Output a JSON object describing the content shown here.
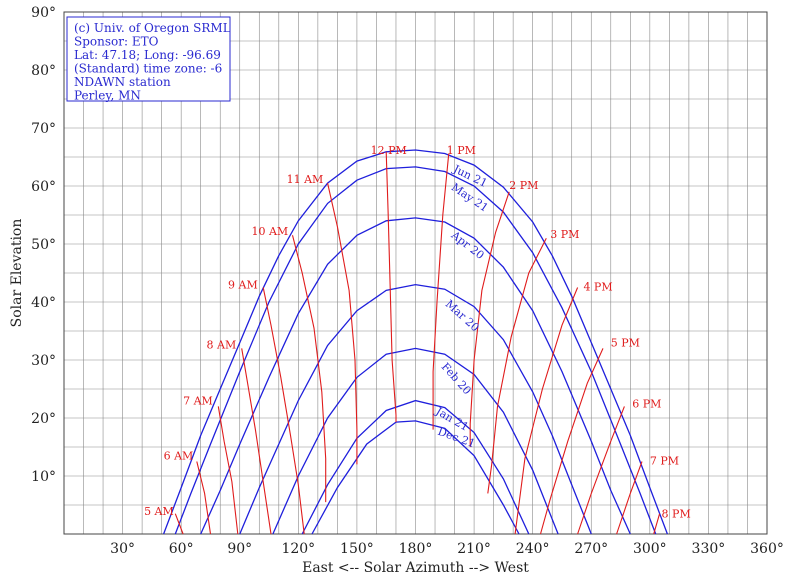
{
  "chart_data": {
    "type": "line",
    "title": "",
    "xlabel": "East <-- Solar Azimuth --> West",
    "ylabel": "Solar Elevation",
    "xlim": [
      0,
      360
    ],
    "ylim": [
      0,
      90
    ],
    "x_ticks": [
      30,
      60,
      90,
      120,
      150,
      180,
      210,
      240,
      270,
      300,
      330,
      360
    ],
    "y_ticks": [
      10,
      20,
      30,
      40,
      50,
      60,
      70,
      80,
      90
    ],
    "x_tick_labels": [
      "30°",
      "60°",
      "90°",
      "120°",
      "150°",
      "180°",
      "210°",
      "240°",
      "270°",
      "300°",
      "330°",
      "360°"
    ],
    "y_tick_labels": [
      "10°",
      "20°",
      "30°",
      "40°",
      "50°",
      "60°",
      "70°",
      "80°",
      "90°"
    ],
    "grid": true,
    "info_box": [
      "(c) Univ. of Oregon SRML",
      "Sponsor: ETO",
      "Lat: 47.18; Long: -96.69",
      "(Standard) time zone: -6",
      "NDAWN station",
      "Perley, MN"
    ],
    "colors": {
      "date_curves": "#1f1fdc",
      "hour_curves": "#e01c1c",
      "grid": "#8a8a8a",
      "info_text": "#2a2ad0"
    },
    "date_series": [
      {
        "name": "Jun 21",
        "points": [
          [
            51,
            0
          ],
          [
            60,
            8
          ],
          [
            70,
            17
          ],
          [
            80,
            25
          ],
          [
            90,
            33
          ],
          [
            100,
            41
          ],
          [
            110,
            48
          ],
          [
            120,
            54
          ],
          [
            135,
            60.5
          ],
          [
            150,
            64.3
          ],
          [
            165,
            65.9
          ],
          [
            180,
            66.2
          ],
          [
            195,
            65.6
          ],
          [
            210,
            63.6
          ],
          [
            225,
            59.8
          ],
          [
            240,
            53.8
          ],
          [
            250,
            48
          ],
          [
            260,
            41
          ],
          [
            270,
            33
          ],
          [
            280,
            25
          ],
          [
            290,
            17
          ],
          [
            300,
            8
          ],
          [
            309,
            0
          ]
        ]
      },
      {
        "name": "May 21",
        "points": [
          [
            57,
            0
          ],
          [
            65,
            7
          ],
          [
            75,
            15.5
          ],
          [
            90,
            28
          ],
          [
            105,
            40
          ],
          [
            120,
            50
          ],
          [
            135,
            57
          ],
          [
            150,
            61
          ],
          [
            165,
            63
          ],
          [
            180,
            63.3
          ],
          [
            195,
            62.5
          ],
          [
            210,
            60
          ],
          [
            225,
            55.5
          ],
          [
            240,
            48.5
          ],
          [
            255,
            39
          ],
          [
            270,
            28
          ],
          [
            285,
            15.5
          ],
          [
            295,
            7
          ],
          [
            303,
            0
          ]
        ]
      },
      {
        "name": "Apr 20",
        "points": [
          [
            70,
            0
          ],
          [
            80,
            7.5
          ],
          [
            90,
            15.5
          ],
          [
            105,
            27
          ],
          [
            120,
            38
          ],
          [
            135,
            46.5
          ],
          [
            150,
            51.5
          ],
          [
            165,
            54
          ],
          [
            180,
            54.5
          ],
          [
            195,
            53.8
          ],
          [
            210,
            51
          ],
          [
            225,
            46
          ],
          [
            240,
            38.5
          ],
          [
            255,
            28
          ],
          [
            270,
            16
          ],
          [
            280,
            7.5
          ],
          [
            290,
            0
          ]
        ]
      },
      {
        "name": "Mar 20",
        "points": [
          [
            90,
            0
          ],
          [
            100,
            8
          ],
          [
            110,
            15.5
          ],
          [
            120,
            23
          ],
          [
            135,
            32.5
          ],
          [
            150,
            38.5
          ],
          [
            165,
            42
          ],
          [
            180,
            43
          ],
          [
            195,
            42.2
          ],
          [
            210,
            39.2
          ],
          [
            225,
            33.5
          ],
          [
            240,
            24.5
          ],
          [
            250,
            17
          ],
          [
            260,
            8.5
          ],
          [
            270,
            0
          ]
        ]
      },
      {
        "name": "Feb 20",
        "points": [
          [
            107,
            0
          ],
          [
            120,
            10
          ],
          [
            135,
            20
          ],
          [
            150,
            27
          ],
          [
            165,
            31
          ],
          [
            180,
            32
          ],
          [
            195,
            31
          ],
          [
            210,
            27.5
          ],
          [
            225,
            21
          ],
          [
            240,
            11
          ],
          [
            253,
            0
          ]
        ]
      },
      {
        "name": "Jan 21",
        "points": [
          [
            122,
            0
          ],
          [
            135,
            8.5
          ],
          [
            150,
            16.5
          ],
          [
            165,
            21.3
          ],
          [
            180,
            23
          ],
          [
            195,
            21.8
          ],
          [
            210,
            17.5
          ],
          [
            225,
            9.5
          ],
          [
            238,
            0
          ]
        ]
      },
      {
        "name": "Dec 21",
        "points": [
          [
            127,
            0
          ],
          [
            140,
            8
          ],
          [
            155,
            15.5
          ],
          [
            170,
            19.3
          ],
          [
            180,
            19.5
          ],
          [
            195,
            18.2
          ],
          [
            210,
            13.5
          ],
          [
            225,
            5
          ],
          [
            233,
            0
          ]
        ]
      }
    ],
    "hour_series": [
      {
        "name": "5 AM",
        "points": [
          [
            57,
            3.5
          ],
          [
            61,
            0
          ]
        ]
      },
      {
        "name": "6 AM",
        "points": [
          [
            68,
            12.5
          ],
          [
            72,
            7
          ],
          [
            75,
            0
          ]
        ]
      },
      {
        "name": "7 AM",
        "points": [
          [
            79,
            22
          ],
          [
            82,
            16
          ],
          [
            86,
            9
          ],
          [
            89,
            0
          ]
        ]
      },
      {
        "name": "8 AM",
        "points": [
          [
            91,
            32
          ],
          [
            94,
            26
          ],
          [
            98,
            18
          ],
          [
            102,
            9
          ],
          [
            106,
            0
          ]
        ]
      },
      {
        "name": "9 AM",
        "points": [
          [
            102,
            42.5
          ],
          [
            106,
            36
          ],
          [
            111,
            27
          ],
          [
            116,
            17
          ],
          [
            120,
            8.5
          ],
          [
            123,
            0
          ]
        ]
      },
      {
        "name": "10 AM",
        "points": [
          [
            117,
            51.5
          ],
          [
            122,
            45
          ],
          [
            128,
            35.5
          ],
          [
            132,
            24.5
          ],
          [
            134,
            13
          ],
          [
            134,
            5.5
          ]
        ]
      },
      {
        "name": "11 AM",
        "points": [
          [
            135,
            60.5
          ],
          [
            140,
            53
          ],
          [
            146,
            42
          ],
          [
            149,
            30
          ],
          [
            150,
            18
          ],
          [
            150,
            12
          ]
        ]
      },
      {
        "name": "12 PM",
        "points": [
          [
            165,
            65.9
          ],
          [
            166,
            55
          ],
          [
            167,
            43
          ],
          [
            168,
            30
          ],
          [
            170,
            20.5
          ],
          [
            170,
            19.3
          ]
        ]
      },
      {
        "name": "1 PM",
        "points": [
          [
            197,
            65.5
          ],
          [
            194,
            55
          ],
          [
            191,
            40
          ],
          [
            189,
            28
          ],
          [
            189,
            18
          ]
        ]
      },
      {
        "name": "2 PM",
        "points": [
          [
            228,
            59
          ],
          [
            221,
            52
          ],
          [
            214,
            42
          ],
          [
            210,
            30
          ],
          [
            208,
            19
          ],
          [
            208,
            15
          ]
        ]
      },
      {
        "name": "3 PM",
        "points": [
          [
            247,
            51
          ],
          [
            238,
            45
          ],
          [
            229,
            34
          ],
          [
            222,
            22
          ],
          [
            219,
            12
          ],
          [
            217,
            7
          ]
        ]
      },
      {
        "name": "4 PM",
        "points": [
          [
            263,
            42.5
          ],
          [
            255,
            36
          ],
          [
            245,
            25
          ],
          [
            236,
            13
          ],
          [
            231,
            0
          ]
        ]
      },
      {
        "name": "5 PM",
        "points": [
          [
            276,
            32
          ],
          [
            268,
            26
          ],
          [
            258,
            16
          ],
          [
            249,
            6
          ],
          [
            244,
            0
          ]
        ]
      },
      {
        "name": "6 PM",
        "points": [
          [
            287,
            22
          ],
          [
            280,
            16
          ],
          [
            270,
            7
          ],
          [
            263,
            0
          ]
        ]
      },
      {
        "name": "7 PM",
        "points": [
          [
            296,
            12.5
          ],
          [
            290,
            7
          ],
          [
            283,
            0
          ]
        ]
      },
      {
        "name": "8 PM",
        "points": [
          [
            305,
            3.5
          ],
          [
            302,
            0
          ]
        ]
      }
    ],
    "hour_labels": [
      {
        "text": "5 AM",
        "x": 41,
        "y": 4
      },
      {
        "text": "6 AM",
        "x": 51,
        "y": 13.5
      },
      {
        "text": "7 AM",
        "x": 61,
        "y": 23
      },
      {
        "text": "8 AM",
        "x": 73,
        "y": 32.7
      },
      {
        "text": "9 AM",
        "x": 84,
        "y": 43
      },
      {
        "text": "10 AM",
        "x": 96,
        "y": 52.2
      },
      {
        "text": "11 AM",
        "x": 114,
        "y": 61.2
      },
      {
        "text": "12 PM",
        "x": 157,
        "y": 66.2
      },
      {
        "text": "1 PM",
        "x": 196,
        "y": 66.2
      },
      {
        "text": "2 PM",
        "x": 228,
        "y": 60.2
      },
      {
        "text": "3 PM",
        "x": 249,
        "y": 51.7
      },
      {
        "text": "4 PM",
        "x": 266,
        "y": 42.7
      },
      {
        "text": "5 PM",
        "x": 280,
        "y": 33
      },
      {
        "text": "6 PM",
        "x": 291,
        "y": 22.5
      },
      {
        "text": "7 PM",
        "x": 300,
        "y": 12.7
      },
      {
        "text": "8 PM",
        "x": 306,
        "y": 3.5
      }
    ],
    "date_labels": [
      {
        "text": "Jun 21",
        "x": 199,
        "y": 62.5,
        "angle": 26
      },
      {
        "text": "May 21",
        "x": 198,
        "y": 59.5,
        "angle": 34
      },
      {
        "text": "Apr 20",
        "x": 198,
        "y": 51.3,
        "angle": 38
      },
      {
        "text": "Mar 20",
        "x": 195,
        "y": 39.5,
        "angle": 42
      },
      {
        "text": "Feb 20",
        "x": 193,
        "y": 28.8,
        "angle": 48
      },
      {
        "text": "Jan 21",
        "x": 190,
        "y": 20.8,
        "angle": 30
      },
      {
        "text": "Dec 21",
        "x": 191,
        "y": 17.2,
        "angle": 20
      }
    ]
  }
}
